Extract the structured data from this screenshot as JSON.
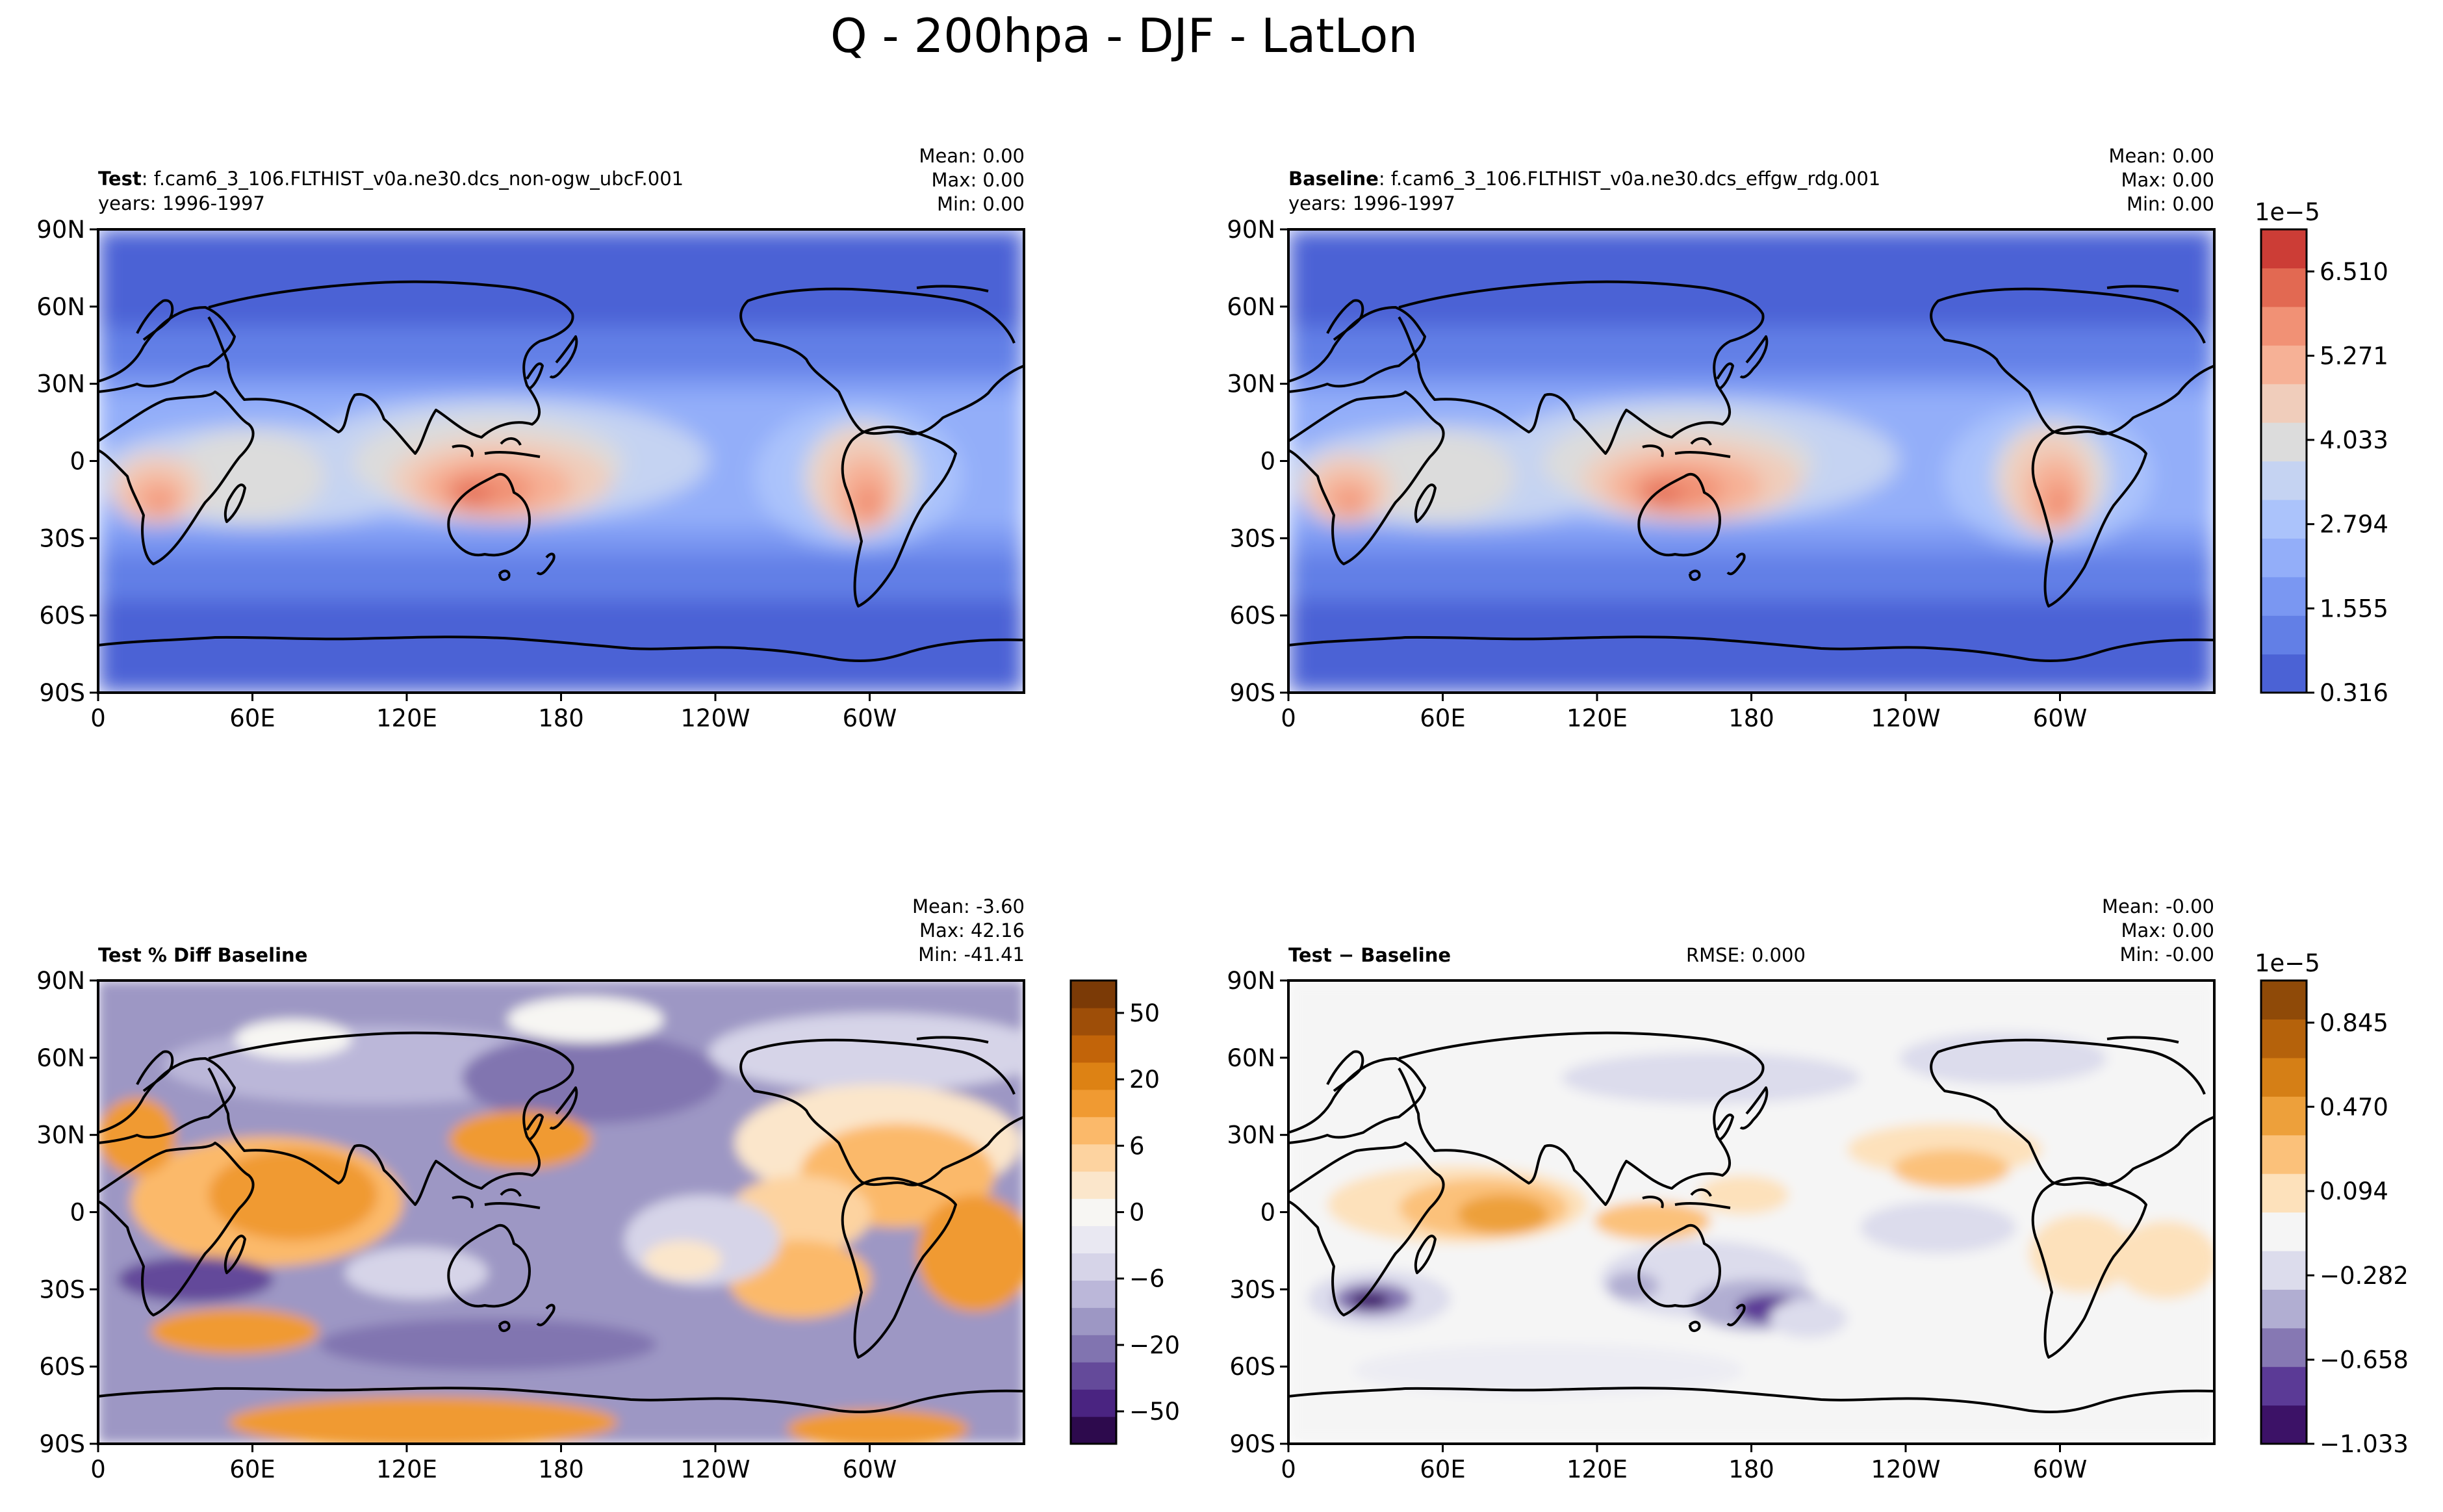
{
  "figure_title": "Q - 200hpa - DJF - LatLon",
  "chart_data": [
    {
      "type": "heatmap",
      "panel": "test",
      "label_bold": "Test",
      "label_rest": ": f.cam6_3_106.FLTHIST_v0a.ne30.dcs_non-ogw_ubcF.001",
      "subtitle": "years: 1996-1997",
      "stats": [
        "Mean:  0.00",
        "Max:  0.00",
        "Min:  0.00"
      ],
      "x_ticks": [
        "0",
        "60E",
        "120E",
        "180",
        "120W",
        "60W"
      ],
      "y_ticks": [
        "90N",
        "60N",
        "30N",
        "0",
        "30S",
        "60S",
        "90S"
      ],
      "xlim": [
        0,
        360
      ],
      "ylim": [
        -90,
        90
      ],
      "colormap": "coolwarm"
    },
    {
      "type": "heatmap",
      "panel": "baseline",
      "label_bold": "Baseline",
      "label_rest": ": f.cam6_3_106.FLTHIST_v0a.ne30.dcs_effgw_rdg.001",
      "subtitle": "years: 1996-1997",
      "stats": [
        "Mean:  0.00",
        "Max:  0.00",
        "Min:  0.00"
      ],
      "x_ticks": [
        "0",
        "60E",
        "120E",
        "180",
        "120W",
        "60W"
      ],
      "y_ticks": [
        "90N",
        "60N",
        "30N",
        "0",
        "30S",
        "60S",
        "90S"
      ],
      "xlim": [
        0,
        360
      ],
      "ylim": [
        -90,
        90
      ],
      "colormap": "coolwarm",
      "colorbar": {
        "exponent": "1e−5",
        "ticks": [
          "6.510",
          "5.271",
          "4.033",
          "2.794",
          "1.555",
          "0.316"
        ],
        "tick_values": [
          6.51,
          5.271,
          4.033,
          2.794,
          1.555,
          0.316
        ],
        "range": [
          0.316,
          7.129
        ],
        "levels": 11,
        "colors": [
          "#4b62d5",
          "#627fe6",
          "#7a97f2",
          "#93aef9",
          "#abc3fb",
          "#c5d3f2",
          "#dcdcdc",
          "#f0cdbb",
          "#f6b196",
          "#f19175",
          "#e26952",
          "#cc3d36"
        ]
      }
    },
    {
      "type": "heatmap",
      "panel": "percent_diff",
      "label_bold": "Test % Diff Baseline",
      "stats": [
        "Mean: -3.60",
        "Max: 42.16",
        "Min: -41.41"
      ],
      "x_ticks": [
        "0",
        "60E",
        "120E",
        "180",
        "120W",
        "60W"
      ],
      "y_ticks": [
        "90N",
        "60N",
        "30N",
        "0",
        "30S",
        "60S",
        "90S"
      ],
      "xlim": [
        0,
        360
      ],
      "ylim": [
        -90,
        90
      ],
      "colormap": "PuOr_r",
      "colorbar": {
        "ticks": [
          "50",
          "20",
          "6",
          "0",
          "−6",
          "−20",
          "−50"
        ],
        "colors": [
          "#2d0a4d",
          "#4a2481",
          "#644a9a",
          "#8174b0",
          "#9d97c4",
          "#bbb7d9",
          "#d6d4e8",
          "#e9e8f2",
          "#f7f6f3",
          "#fbe6cb",
          "#fdd3a0",
          "#fbb96a",
          "#f09a32",
          "#dd8214",
          "#c26409",
          "#9e4e08",
          "#7b3a06"
        ]
      }
    },
    {
      "type": "heatmap",
      "panel": "difference",
      "label_bold": "Test − Baseline",
      "rmse": "RMSE: 0.000",
      "stats": [
        "Mean: -0.00",
        "Max:  0.00",
        "Min: -0.00"
      ],
      "x_ticks": [
        "0",
        "60E",
        "120E",
        "180",
        "120W",
        "60W"
      ],
      "y_ticks": [
        "90N",
        "60N",
        "30N",
        "0",
        "30S",
        "60S",
        "90S"
      ],
      "xlim": [
        0,
        360
      ],
      "ylim": [
        -90,
        90
      ],
      "colormap": "PuOr_r",
      "colorbar": {
        "exponent": "1e−5",
        "ticks": [
          "0.845",
          "0.470",
          "0.094",
          "−0.282",
          "−0.658",
          "−1.033"
        ],
        "tick_values": [
          0.845,
          0.47,
          0.094,
          -0.282,
          -0.658,
          -1.033
        ],
        "range": [
          -1.033,
          1.033
        ],
        "colors": [
          "#3c1267",
          "#5b3a96",
          "#8678b3",
          "#b1aed2",
          "#dcdcec",
          "#f5f5f5",
          "#fde1bb",
          "#fbc17a",
          "#eda03b",
          "#d57f16",
          "#b5620b",
          "#8f4a08"
        ]
      }
    }
  ]
}
